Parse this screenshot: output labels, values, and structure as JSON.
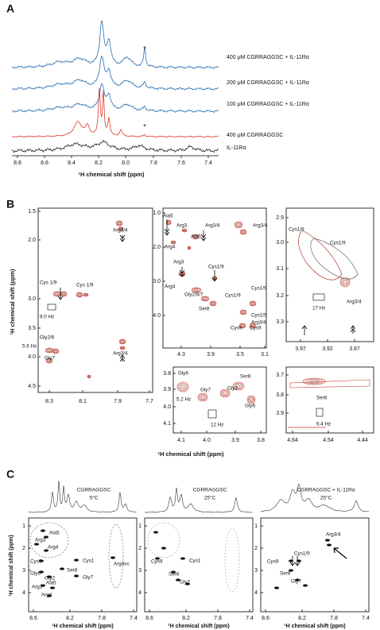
{
  "panels": [
    {
      "label": "A",
      "spectrum_labels": [
        "400 μM CGRRAGGSC + IL-11Rα",
        "200 μM CGRRAGGSC + IL-11Rα",
        "100 μM CGRRAGGSC + IL-11Rα",
        "400 μM CGRRAGGSC",
        "IL-11Rα"
      ],
      "peak_marks": [
        "*",
        "*"
      ],
      "x_ticks": [
        "8.8",
        "8.6",
        "8.4",
        "8.2",
        "8.0",
        "7.8",
        "7.6",
        "7.4"
      ],
      "x_axis_label": "¹H chemical shift (ppm)"
    },
    {
      "label": "B",
      "y_axis_label": "¹H chemical shift (ppm)",
      "x_axis_label": "¹H chemical shift (ppm)",
      "plots": [
        {
          "y_ticks": [
            "1.5",
            "2.0",
            "3.0",
            "3.5",
            "4.0",
            "4.5"
          ],
          "x_ticks": [
            "8.3",
            "8.1",
            "7.9",
            "7.7"
          ],
          "annotations": [
            "Arg3/4",
            "Cys 1/9",
            "Cys 1/9",
            "9.0 Hz",
            "Gly2/6",
            "5.6 Hz",
            "Gly7",
            "Arg3/4"
          ]
        },
        {
          "y_ticks": [
            "1.0",
            "2.0",
            "3.0",
            "4.0"
          ],
          "x_ticks": [
            "4.3",
            "3.9",
            "3.5",
            "3.1"
          ],
          "annotations": [
            "Ala5",
            "Arg3",
            "Arg3/4",
            "Ala5",
            "Arg4",
            "Arg3/4",
            "Arg3",
            "Cys1/9",
            "Arg4",
            "Gly2/6/7",
            "Cys1/9",
            "Cys1/9",
            "Ser8",
            "Cys1/9",
            "Arg3/4",
            "Cys9",
            "Cys9"
          ]
        },
        {
          "y_ticks": [
            "2.9",
            "3.0",
            "3.1",
            "3.2",
            "3.3"
          ],
          "x_ticks": [
            "3.97",
            "3.92",
            "3.87"
          ],
          "annotations": [
            "Cys1/9",
            "Cys1/9",
            "17 Hz",
            "Arg3/4"
          ]
        },
        {
          "y_ticks": [
            "3.8",
            "3.9",
            "4.0",
            "4.1"
          ],
          "x_ticks": [
            "4.1",
            "4.0",
            "3.9",
            "3.8"
          ],
          "annotations": [
            "Gly6",
            "Ser8",
            "Gly2",
            "Gly7",
            "5.2 Hz",
            "Gly6",
            "12 Hz"
          ]
        },
        {
          "y_ticks": [
            "3.7",
            "3.8",
            "3.9"
          ],
          "x_ticks": [
            "4.64",
            "4.54",
            "4.44"
          ],
          "annotations": [
            "Ser8",
            "6.4 Hz"
          ]
        }
      ]
    },
    {
      "label": "C",
      "y_axis_label": "¹H chemical shift (ppm)",
      "plots": [
        {
          "title": [
            "CGRRAGGSC",
            "5°C"
          ],
          "y_ticks": [
            "1",
            "2",
            "3",
            "4"
          ],
          "x_ticks": [
            "8.6",
            "8.2",
            "7.8",
            "7.4"
          ],
          "x_axis_label": "¹H chemical shift (ppm)",
          "annotations": [
            "Ala5",
            "Arg3",
            "Arg4",
            "Arg4sc",
            "Cys9",
            "Cys1",
            "Gly6",
            "Ser8",
            "Gly2",
            "Gly7",
            "Arg3",
            "Ala5",
            "Arg4"
          ]
        },
        {
          "title": [
            "CGRRAGGSC",
            "25°C"
          ],
          "y_ticks": [
            "1",
            "2",
            "3",
            "4"
          ],
          "x_ticks": [
            "8.6",
            "8.2",
            "7.8",
            "7.4"
          ],
          "x_axis_label": "¹H chemical shift (ppm)",
          "annotations": [
            "Cys9",
            "Cys1",
            "Ser8",
            "Gly7"
          ]
        },
        {
          "title": [
            "CGRRAGGSC + IL-11Rα",
            "25°C"
          ],
          "y_ticks": [
            "1",
            "2",
            "3",
            "4"
          ],
          "x_ticks": [
            "8.6",
            "8.2",
            "7.8",
            "7.4"
          ],
          "x_axis_label": "¹H chemical shift (ppm)",
          "annotations": [
            "Arg3/4",
            "Cys1/9",
            "Cys9",
            "Ser8",
            "Gly7"
          ]
        }
      ]
    }
  ]
}
